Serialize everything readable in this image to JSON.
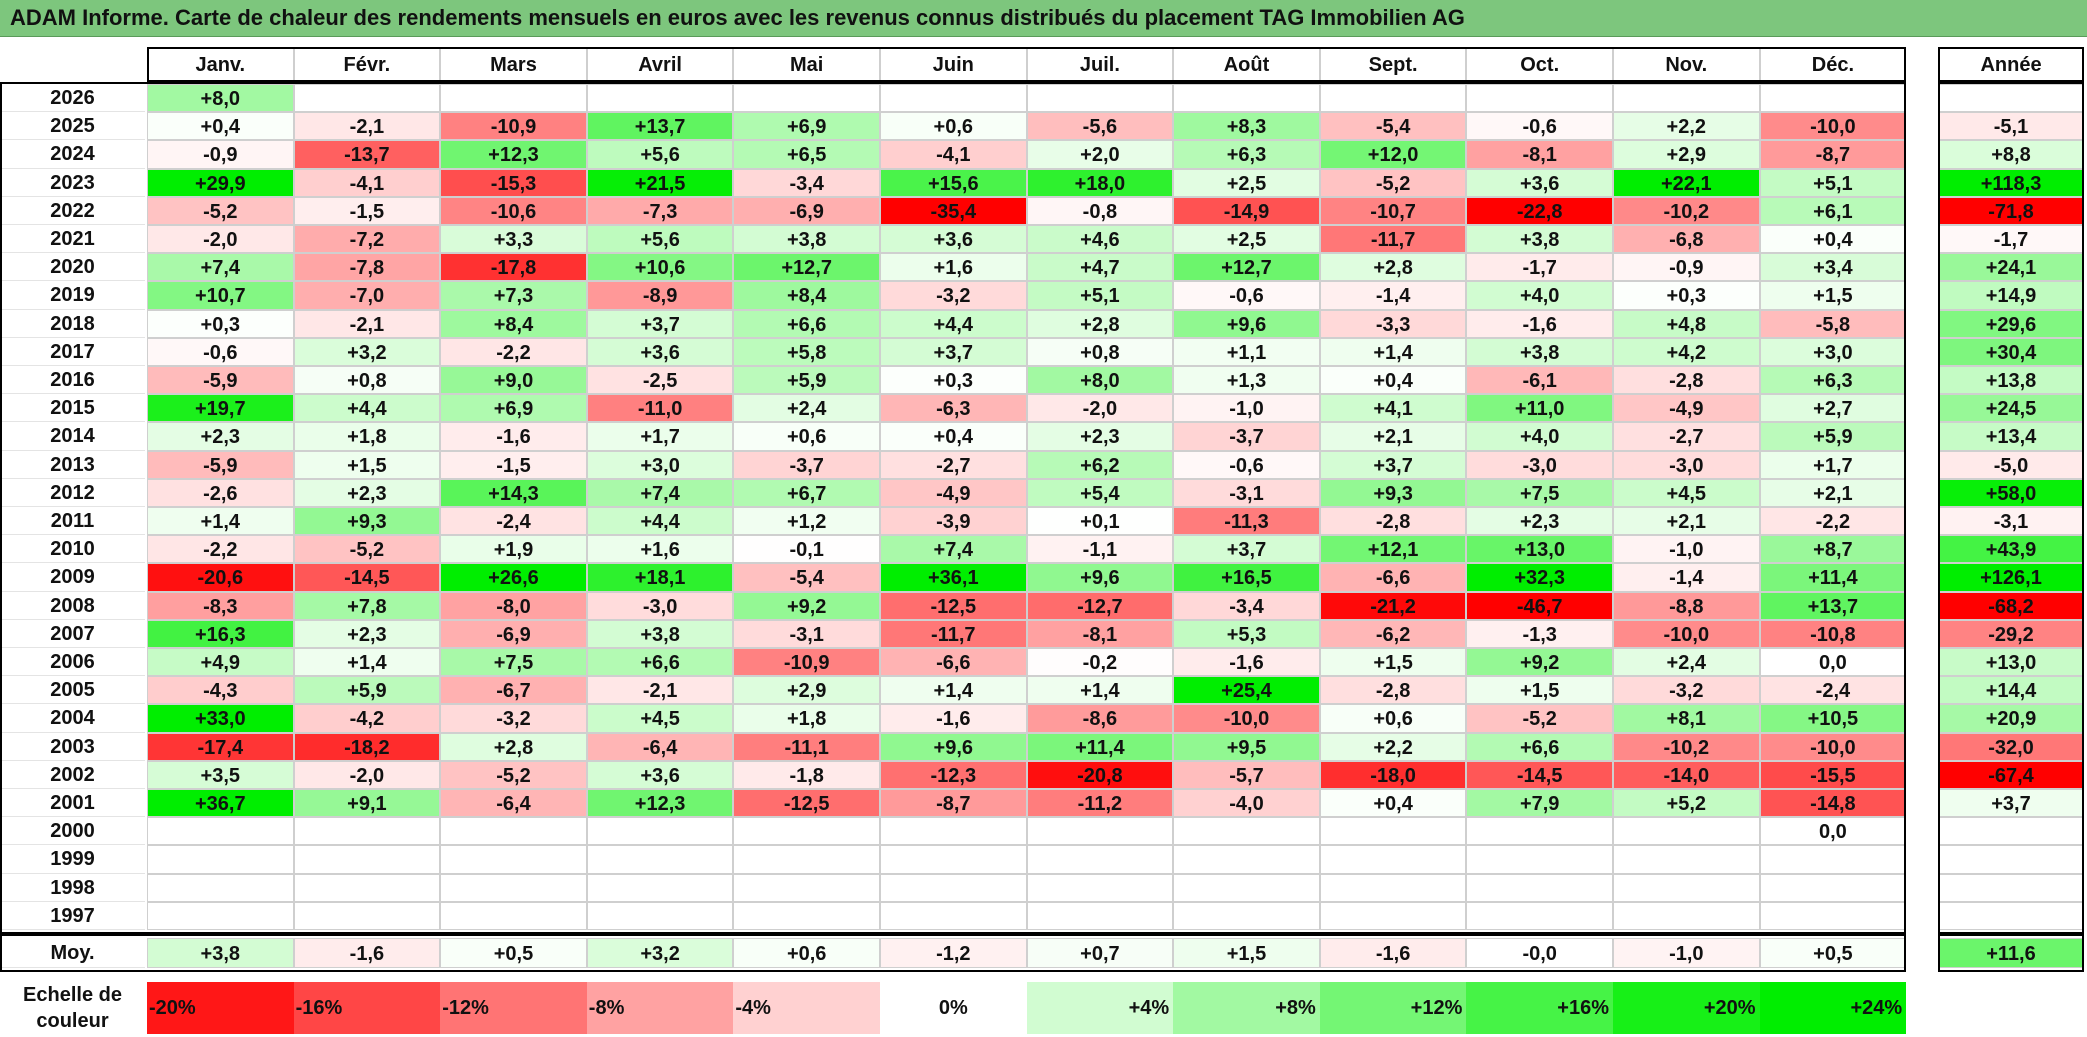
{
  "title": "ADAM Informe. Carte de chaleur des rendements mensuels en euros avec les revenus connus distribués du placement TAG Immobilien AG",
  "chart_data": {
    "type": "heatmap",
    "title": "ADAM Informe. Carte de chaleur des rendements mensuels en euros avec les revenus connus distribués du placement TAG Immobilien AG",
    "months": [
      "Janv.",
      "Févr.",
      "Mars",
      "Avril",
      "Mai",
      "Juin",
      "Juil.",
      "Août",
      "Sept.",
      "Oct.",
      "Nov.",
      "Déc."
    ],
    "year_header": "Année",
    "rows": [
      {
        "year": "2026",
        "months": [
          "+8,0",
          "",
          "",
          "",
          "",
          "",
          "",
          "",
          "",
          "",
          "",
          ""
        ],
        "annual": ""
      },
      {
        "year": "2025",
        "months": [
          "+0,4",
          "-2,1",
          "-10,9",
          "+13,7",
          "+6,9",
          "+0,6",
          "-5,6",
          "+8,3",
          "-5,4",
          "-0,6",
          "+2,2",
          "-10,0"
        ],
        "annual": "-5,1"
      },
      {
        "year": "2024",
        "months": [
          "-0,9",
          "-13,7",
          "+12,3",
          "+5,6",
          "+6,5",
          "-4,1",
          "+2,0",
          "+6,3",
          "+12,0",
          "-8,1",
          "+2,9",
          "-8,7"
        ],
        "annual": "+8,8"
      },
      {
        "year": "2023",
        "months": [
          "+29,9",
          "-4,1",
          "-15,3",
          "+21,5",
          "-3,4",
          "+15,6",
          "+18,0",
          "+2,5",
          "-5,2",
          "+3,6",
          "+22,1",
          "+5,1"
        ],
        "annual": "+118,3"
      },
      {
        "year": "2022",
        "months": [
          "-5,2",
          "-1,5",
          "-10,6",
          "-7,3",
          "-6,9",
          "-35,4",
          "-0,8",
          "-14,9",
          "-10,7",
          "-22,8",
          "-10,2",
          "+6,1"
        ],
        "annual": "-71,8"
      },
      {
        "year": "2021",
        "months": [
          "-2,0",
          "-7,2",
          "+3,3",
          "+5,6",
          "+3,8",
          "+3,6",
          "+4,6",
          "+2,5",
          "-11,7",
          "+3,8",
          "-6,8",
          "+0,4"
        ],
        "annual": "-1,7"
      },
      {
        "year": "2020",
        "months": [
          "+7,4",
          "-7,8",
          "-17,8",
          "+10,6",
          "+12,7",
          "+1,6",
          "+4,7",
          "+12,7",
          "+2,8",
          "-1,7",
          "-0,9",
          "+3,4"
        ],
        "annual": "+24,1"
      },
      {
        "year": "2019",
        "months": [
          "+10,7",
          "-7,0",
          "+7,3",
          "-8,9",
          "+8,4",
          "-3,2",
          "+5,1",
          "-0,6",
          "-1,4",
          "+4,0",
          "+0,3",
          "+1,5"
        ],
        "annual": "+14,9"
      },
      {
        "year": "2018",
        "months": [
          "+0,3",
          "-2,1",
          "+8,4",
          "+3,7",
          "+6,6",
          "+4,4",
          "+2,8",
          "+9,6",
          "-3,3",
          "-1,6",
          "+4,8",
          "-5,8"
        ],
        "annual": "+29,6"
      },
      {
        "year": "2017",
        "months": [
          "-0,6",
          "+3,2",
          "-2,2",
          "+3,6",
          "+5,8",
          "+3,7",
          "+0,8",
          "+1,1",
          "+1,4",
          "+3,8",
          "+4,2",
          "+3,0"
        ],
        "annual": "+30,4"
      },
      {
        "year": "2016",
        "months": [
          "-5,9",
          "+0,8",
          "+9,0",
          "-2,5",
          "+5,9",
          "+0,3",
          "+8,0",
          "+1,3",
          "+0,4",
          "-6,1",
          "-2,8",
          "+6,3"
        ],
        "annual": "+13,8"
      },
      {
        "year": "2015",
        "months": [
          "+19,7",
          "+4,4",
          "+6,9",
          "-11,0",
          "+2,4",
          "-6,3",
          "-2,0",
          "-1,0",
          "+4,1",
          "+11,0",
          "-4,9",
          "+2,7"
        ],
        "annual": "+24,5"
      },
      {
        "year": "2014",
        "months": [
          "+2,3",
          "+1,8",
          "-1,6",
          "+1,7",
          "+0,6",
          "+0,4",
          "+2,3",
          "-3,7",
          "+2,1",
          "+4,0",
          "-2,7",
          "+5,9"
        ],
        "annual": "+13,4"
      },
      {
        "year": "2013",
        "months": [
          "-5,9",
          "+1,5",
          "-1,5",
          "+3,0",
          "-3,7",
          "-2,7",
          "+6,2",
          "-0,6",
          "+3,7",
          "-3,0",
          "-3,0",
          "+1,7"
        ],
        "annual": "-5,0"
      },
      {
        "year": "2012",
        "months": [
          "-2,6",
          "+2,3",
          "+14,3",
          "+7,4",
          "+6,7",
          "-4,9",
          "+5,4",
          "-3,1",
          "+9,3",
          "+7,5",
          "+4,5",
          "+2,1"
        ],
        "annual": "+58,0"
      },
      {
        "year": "2011",
        "months": [
          "+1,4",
          "+9,3",
          "-2,4",
          "+4,4",
          "+1,2",
          "-3,9",
          "+0,1",
          "-11,3",
          "-2,8",
          "+2,3",
          "+2,1",
          "-2,2"
        ],
        "annual": "-3,1"
      },
      {
        "year": "2010",
        "months": [
          "-2,2",
          "-5,2",
          "+1,9",
          "+1,6",
          "-0,1",
          "+7,4",
          "-1,1",
          "+3,7",
          "+12,1",
          "+13,0",
          "-1,0",
          "+8,7"
        ],
        "annual": "+43,9"
      },
      {
        "year": "2009",
        "months": [
          "-20,6",
          "-14,5",
          "+26,6",
          "+18,1",
          "-5,4",
          "+36,1",
          "+9,6",
          "+16,5",
          "-6,6",
          "+32,3",
          "-1,4",
          "+11,4"
        ],
        "annual": "+126,1"
      },
      {
        "year": "2008",
        "months": [
          "-8,3",
          "+7,8",
          "-8,0",
          "-3,0",
          "+9,2",
          "-12,5",
          "-12,7",
          "-3,4",
          "-21,2",
          "-46,7",
          "-8,8",
          "+13,7"
        ],
        "annual": "-68,2"
      },
      {
        "year": "2007",
        "months": [
          "+16,3",
          "+2,3",
          "-6,9",
          "+3,8",
          "-3,1",
          "-11,7",
          "-8,1",
          "+5,3",
          "-6,2",
          "-1,3",
          "-10,0",
          "-10,8"
        ],
        "annual": "-29,2"
      },
      {
        "year": "2006",
        "months": [
          "+4,9",
          "+1,4",
          "+7,5",
          "+6,6",
          "-10,9",
          "-6,6",
          "-0,2",
          "-1,6",
          "+1,5",
          "+9,2",
          "+2,4",
          "0,0"
        ],
        "annual": "+13,0"
      },
      {
        "year": "2005",
        "months": [
          "-4,3",
          "+5,9",
          "-6,7",
          "-2,1",
          "+2,9",
          "+1,4",
          "+1,4",
          "+25,4",
          "-2,8",
          "+1,5",
          "-3,2",
          "-2,4"
        ],
        "annual": "+14,4"
      },
      {
        "year": "2004",
        "months": [
          "+33,0",
          "-4,2",
          "-3,2",
          "+4,5",
          "+1,8",
          "-1,6",
          "-8,6",
          "-10,0",
          "+0,6",
          "-5,2",
          "+8,1",
          "+10,5"
        ],
        "annual": "+20,9"
      },
      {
        "year": "2003",
        "months": [
          "-17,4",
          "-18,2",
          "+2,8",
          "-6,4",
          "-11,1",
          "+9,6",
          "+11,4",
          "+9,5",
          "+2,2",
          "+6,6",
          "-10,2",
          "-10,0"
        ],
        "annual": "-32,0"
      },
      {
        "year": "2002",
        "months": [
          "+3,5",
          "-2,0",
          "-5,2",
          "+3,6",
          "-1,8",
          "-12,3",
          "-20,8",
          "-5,7",
          "-18,0",
          "-14,5",
          "-14,0",
          "-15,5"
        ],
        "annual": "-67,4"
      },
      {
        "year": "2001",
        "months": [
          "+36,7",
          "+9,1",
          "-6,4",
          "+12,3",
          "-12,5",
          "-8,7",
          "-11,2",
          "-4,0",
          "+0,4",
          "+7,9",
          "+5,2",
          "-14,8"
        ],
        "annual": "+3,7"
      },
      {
        "year": "2000",
        "months": [
          "",
          "",
          "",
          "",
          "",
          "",
          "",
          "",
          "",
          "",
          "",
          "0,0"
        ],
        "annual": ""
      },
      {
        "year": "1999",
        "months": [
          "",
          "",
          "",
          "",
          "",
          "",
          "",
          "",
          "",
          "",
          "",
          ""
        ],
        "annual": ""
      },
      {
        "year": "1998",
        "months": [
          "",
          "",
          "",
          "",
          "",
          "",
          "",
          "",
          "",
          "",
          "",
          ""
        ],
        "annual": ""
      },
      {
        "year": "1997",
        "months": [
          "",
          "",
          "",
          "",
          "",
          "",
          "",
          "",
          "",
          "",
          "",
          ""
        ],
        "annual": ""
      }
    ],
    "average": {
      "label": "Moy.",
      "months": [
        "+3,8",
        "-1,6",
        "+0,5",
        "+3,2",
        "+0,6",
        "-1,2",
        "+0,7",
        "+1,5",
        "-1,6",
        "-0,0",
        "-1,0",
        "+0,5"
      ],
      "annual": "+11,6"
    },
    "legend": {
      "label_line1": "Echelle de",
      "label_line2": "couleur",
      "steps": [
        "-20%",
        "-16%",
        "-12%",
        "-8%",
        "-4%",
        "0%",
        "+4%",
        "+8%",
        "+12%",
        "+16%",
        "+20%",
        "+24%"
      ],
      "values": [
        -20,
        -16,
        -12,
        -8,
        -4,
        0,
        4,
        8,
        12,
        16,
        20,
        24
      ]
    },
    "color_scale": {
      "negative": "#ff0000",
      "neutral": "#ffffff",
      "positive": "#00ee00"
    }
  }
}
